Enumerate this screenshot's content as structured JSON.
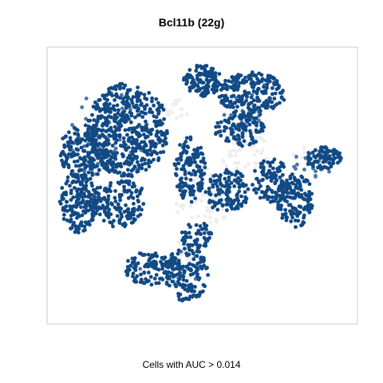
{
  "chart_data": {
    "type": "scatter",
    "title": "Bcl11b (22g)",
    "caption": "Cells with AUC > 0.014",
    "xlabel": "",
    "ylabel": "",
    "xlim": [
      0,
      100
    ],
    "ylim": [
      0,
      100
    ],
    "grid": false,
    "axes_visible": false,
    "colors": {
      "high": "#114a85",
      "mid": "#4a76a8",
      "low": "#eeeeee",
      "frame": "#cccccc"
    },
    "series": [
      {
        "name": "above",
        "color": "#114a85",
        "clusters": [
          {
            "cx": 26,
            "cy": 70,
            "rx": 13,
            "ry": 17,
            "n": 520,
            "seed": 11
          },
          {
            "cx": 12,
            "cy": 62,
            "rx": 8,
            "ry": 10,
            "n": 180,
            "seed": 12
          },
          {
            "cx": 10,
            "cy": 44,
            "rx": 6,
            "ry": 11,
            "n": 170,
            "seed": 13
          },
          {
            "cx": 23,
            "cy": 44,
            "rx": 9,
            "ry": 9,
            "n": 160,
            "seed": 14
          },
          {
            "cx": 50,
            "cy": 88,
            "rx": 6,
            "ry": 6,
            "n": 120,
            "seed": 15
          },
          {
            "cx": 66,
            "cy": 83,
            "rx": 11,
            "ry": 8,
            "n": 220,
            "seed": 16
          },
          {
            "cx": 62,
            "cy": 70,
            "rx": 8,
            "ry": 6,
            "n": 110,
            "seed": 17
          },
          {
            "cx": 46,
            "cy": 56,
            "rx": 5,
            "ry": 12,
            "n": 140,
            "seed": 18
          },
          {
            "cx": 58,
            "cy": 48,
            "rx": 7,
            "ry": 8,
            "n": 130,
            "seed": 19
          },
          {
            "cx": 72,
            "cy": 52,
            "rx": 6,
            "ry": 8,
            "n": 100,
            "seed": 20
          },
          {
            "cx": 80,
            "cy": 45,
            "rx": 6,
            "ry": 10,
            "n": 150,
            "seed": 21
          },
          {
            "cx": 89,
            "cy": 60,
            "rx": 6,
            "ry": 4,
            "n": 80,
            "seed": 22
          },
          {
            "cx": 33,
            "cy": 20,
            "rx": 8,
            "ry": 6,
            "n": 110,
            "seed": 23
          },
          {
            "cx": 45,
            "cy": 18,
            "rx": 7,
            "ry": 10,
            "n": 140,
            "seed": 24
          },
          {
            "cx": 48,
            "cy": 32,
            "rx": 5,
            "ry": 5,
            "n": 60,
            "seed": 25
          }
        ]
      },
      {
        "name": "mid",
        "color": "#4a76a8",
        "clusters": [
          {
            "cx": 20,
            "cy": 68,
            "rx": 14,
            "ry": 16,
            "n": 40,
            "seed": 31
          },
          {
            "cx": 64,
            "cy": 80,
            "rx": 10,
            "ry": 8,
            "n": 25,
            "seed": 32
          },
          {
            "cx": 86,
            "cy": 58,
            "rx": 7,
            "ry": 5,
            "n": 20,
            "seed": 33
          },
          {
            "cx": 40,
            "cy": 20,
            "rx": 10,
            "ry": 8,
            "n": 18,
            "seed": 34
          }
        ]
      },
      {
        "name": "below",
        "color": "#eeeeee",
        "clusters": [
          {
            "cx": 50,
            "cy": 45,
            "rx": 9,
            "ry": 12,
            "n": 90,
            "seed": 41
          },
          {
            "cx": 63,
            "cy": 62,
            "rx": 9,
            "ry": 7,
            "n": 40,
            "seed": 42
          },
          {
            "cx": 44,
            "cy": 22,
            "rx": 6,
            "ry": 8,
            "n": 35,
            "seed": 43
          },
          {
            "cx": 85,
            "cy": 60,
            "rx": 6,
            "ry": 4,
            "n": 20,
            "seed": 44
          },
          {
            "cx": 42,
            "cy": 78,
            "rx": 4,
            "ry": 4,
            "n": 15,
            "seed": 45
          }
        ]
      }
    ]
  }
}
